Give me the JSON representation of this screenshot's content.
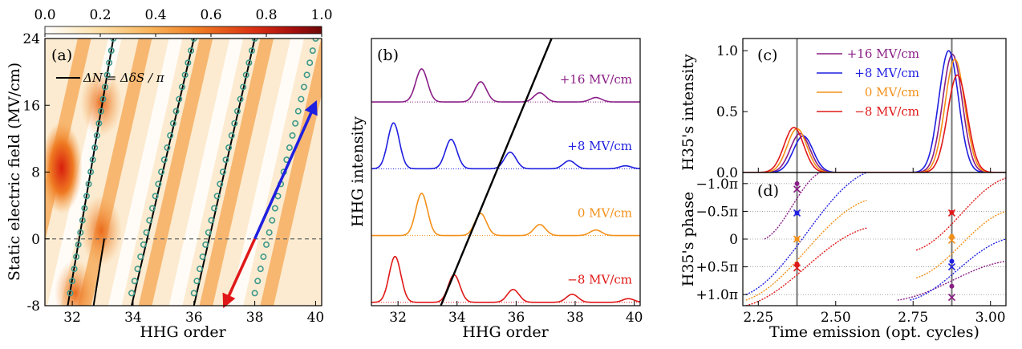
{
  "colorbar": {
    "ticks": [
      "0.0",
      "0.2",
      "0.4",
      "0.6",
      "0.8",
      "1.0"
    ],
    "values": [
      0.0,
      0.2,
      0.4,
      0.6,
      0.8,
      1.0
    ],
    "colors": [
      "#ffffff",
      "#fde3b0",
      "#f9b45a",
      "#ef7a22",
      "#da2f12",
      "#a50e0e",
      "#6e0808"
    ]
  },
  "chart_data": [
    {
      "panel": "(a)",
      "type": "heatmap",
      "xlabel": "HHG order",
      "ylabel": "Static electric field (MV/cm)",
      "xlim": [
        31.1,
        40.2
      ],
      "ylim": [
        -8,
        24
      ],
      "xticks": [
        "32",
        "34",
        "36",
        "38",
        "40"
      ],
      "yticks": [
        "24",
        "16",
        "8",
        "0",
        "-8"
      ],
      "xtick_values": [
        32,
        34,
        36,
        38,
        40
      ],
      "ytick_values": [
        24,
        16,
        8,
        0,
        -8
      ],
      "legend": "ΔN = ΔδS / π",
      "fit_lines": [
        {
          "x": [
            31.85,
            33.35
          ],
          "y": [
            -8,
            24
          ]
        },
        {
          "x": [
            32.7,
            33.05
          ],
          "y": [
            -8,
            0
          ]
        },
        {
          "x": [
            33.95,
            36.0
          ],
          "y": [
            -8,
            24
          ]
        },
        {
          "x": [
            36.0,
            38.0
          ],
          "y": [
            -8,
            24
          ]
        }
      ],
      "marker_lines": [
        {
          "x": [
            31.93,
            33.35
          ],
          "y": [
            -6.5,
            24
          ]
        },
        {
          "x": [
            33.95,
            36.0
          ],
          "y": [
            -6.5,
            24
          ]
        },
        {
          "x": [
            36.0,
            38.0
          ],
          "y": [
            -6.5,
            24
          ]
        },
        {
          "x": [
            38.0,
            40.0
          ],
          "y": [
            -6.5,
            24
          ]
        }
      ],
      "arrows": [
        {
          "color": "#1f1fe0",
          "from": [
            38.0,
            0
          ],
          "to": [
            40.0,
            16.3
          ]
        },
        {
          "color": "#e01818",
          "from": [
            38.0,
            0
          ],
          "to": [
            37.0,
            -8
          ]
        }
      ],
      "hotspots": [
        {
          "x": 31.65,
          "y": 8.5,
          "v": 0.82
        },
        {
          "x": 32.95,
          "y": 16.3,
          "v": 0.5
        },
        {
          "x": 32.95,
          "y": 1.0,
          "v": 0.55
        },
        {
          "x": 32.1,
          "y": -6.5,
          "v": 0.5
        }
      ]
    },
    {
      "panel": "(b)",
      "type": "line",
      "xlabel": "HHG order",
      "ylabel": "HHG intensity",
      "xlim": [
        31.1,
        40.2
      ],
      "xticks": [
        "32",
        "34",
        "36",
        "38",
        "40"
      ],
      "xtick_values": [
        32,
        34,
        36,
        38,
        40
      ],
      "series": [
        {
          "name": "+16 MV/cm",
          "color": "#8a1e86",
          "offset": 3,
          "peaks": [
            [
              32.8,
              0.9
            ],
            [
              34.8,
              0.55
            ],
            [
              36.8,
              0.25
            ],
            [
              38.7,
              0.12
            ]
          ]
        },
        {
          "name": "+8 MV/cm",
          "color": "#1f1fe0",
          "offset": 2,
          "peaks": [
            [
              31.85,
              1.25
            ],
            [
              33.8,
              0.8
            ],
            [
              35.8,
              0.45
            ],
            [
              37.8,
              0.22
            ],
            [
              39.7,
              0.08
            ]
          ]
        },
        {
          "name": "0 MV/cm",
          "color": "#f39018",
          "offset": 1,
          "peaks": [
            [
              32.8,
              1.15
            ],
            [
              34.8,
              0.6
            ],
            [
              36.8,
              0.3
            ],
            [
              38.7,
              0.15
            ]
          ]
        },
        {
          "name": "−8 MV/cm",
          "color": "#e01818",
          "offset": 0,
          "peaks": [
            [
              31.9,
              1.25
            ],
            [
              33.9,
              0.75
            ],
            [
              35.9,
              0.35
            ],
            [
              37.9,
              0.22
            ],
            [
              39.8,
              0.1
            ]
          ]
        }
      ],
      "cutoff_line": {
        "x": [
          33.45,
          37.2
        ],
        "y": [
          -0.05,
          3.95
        ]
      }
    },
    {
      "panel": "(c)",
      "type": "line",
      "xlabel": "",
      "ylabel": "H35's intensity",
      "xlim": [
        2.2,
        3.05
      ],
      "ylim": [
        0.0,
        1.1
      ],
      "yticks": [
        "0.0",
        "0.5",
        "1.0"
      ],
      "ytick_values": [
        0.0,
        0.5,
        1.0
      ],
      "vlines": [
        2.375,
        2.875
      ],
      "series": [
        {
          "name": "+16 MV/cm",
          "color": "#8a1e86",
          "peak1": [
            2.385,
            0.32
          ],
          "peak2": [
            2.877,
            0.97
          ]
        },
        {
          "name": "+8 MV/cm",
          "color": "#1f1fe0",
          "peak1": [
            2.395,
            0.3
          ],
          "peak2": [
            2.865,
            1.0
          ]
        },
        {
          "name": "0 MV/cm",
          "color": "#f39018",
          "peak1": [
            2.375,
            0.36
          ],
          "peak2": [
            2.885,
            0.93
          ]
        },
        {
          "name": "−8 MV/cm",
          "color": "#e01818",
          "peak1": [
            2.365,
            0.37
          ],
          "peak2": [
            2.893,
            0.8
          ]
        }
      ]
    },
    {
      "panel": "(d)",
      "type": "scatter",
      "xlabel": "Time emission (opt. cycles)",
      "ylabel": "H35's phase",
      "xlim": [
        2.2,
        3.05
      ],
      "ylim": [
        -1.2,
        1.2
      ],
      "xticks": [
        "2.25",
        "2.50",
        "2.75",
        "3.00"
      ],
      "xtick_values": [
        2.25,
        2.5,
        2.75,
        3.0
      ],
      "yticks": [
        "−1.0π",
        "−0.5π",
        "0",
        "+0.5π",
        "+1.0π"
      ],
      "ytick_values": [
        -1.0,
        -0.5,
        0,
        0.5,
        1.0
      ],
      "vlines": [
        2.375,
        2.875
      ],
      "series": [
        {
          "name": "+16 MV/cm",
          "color": "#8a1e86",
          "seg1": {
            "x": [
              2.27,
              2.45
            ],
            "y": [
              0.0,
              -1.2
            ]
          },
          "seg2": {
            "x": [
              2.7,
              3.05
            ],
            "y": [
              1.1,
              0.4
            ]
          },
          "markers_x": [
            {
              "x": 2.375,
              "y": -0.9
            },
            {
              "x": 2.875,
              "y": 1.05
            }
          ],
          "markers_dot": [
            {
              "x": 2.375,
              "y": -1.0
            },
            {
              "x": 2.875,
              "y": 0.85
            }
          ]
        },
        {
          "name": "+8 MV/cm",
          "color": "#1f1fe0",
          "seg1": {
            "x": [
              2.21,
              2.6
            ],
            "y": [
              1.0,
              -1.2
            ]
          },
          "seg2": {
            "x": [
              2.74,
              3.05
            ],
            "y": [
              1.1,
              0.0
            ]
          },
          "markers_x": [
            {
              "x": 2.375,
              "y": -0.47
            },
            {
              "x": 2.875,
              "y": 0.5
            }
          ],
          "markers_dot": [
            {
              "x": 2.375,
              "y": -0.47
            },
            {
              "x": 2.875,
              "y": 0.4
            }
          ]
        },
        {
          "name": "0 MV/cm",
          "color": "#f39018",
          "seg1": {
            "x": [
              2.21,
              2.6
            ],
            "y": [
              1.1,
              -0.7
            ]
          },
          "seg2": {
            "x": [
              2.76,
              3.05
            ],
            "y": [
              0.7,
              -0.5
            ]
          },
          "markers_x": [
            {
              "x": 2.375,
              "y": 0.0
            },
            {
              "x": 2.875,
              "y": 0.02
            }
          ],
          "markers_dot": [
            {
              "x": 2.375,
              "y": 0.0
            },
            {
              "x": 2.875,
              "y": -0.05
            }
          ]
        },
        {
          "name": "−8 MV/cm",
          "color": "#e01818",
          "seg1": {
            "x": [
              2.21,
              2.6
            ],
            "y": [
              1.2,
              -0.2
            ]
          },
          "seg2": {
            "x": [
              2.76,
              3.05
            ],
            "y": [
              0.2,
              -1.1
            ]
          },
          "markers_x": [
            {
              "x": 2.375,
              "y": 0.52
            },
            {
              "x": 2.875,
              "y": -0.47
            }
          ],
          "markers_dot": [
            {
              "x": 2.375,
              "y": 0.45
            },
            {
              "x": 2.875,
              "y": -0.48
            }
          ]
        }
      ]
    }
  ]
}
